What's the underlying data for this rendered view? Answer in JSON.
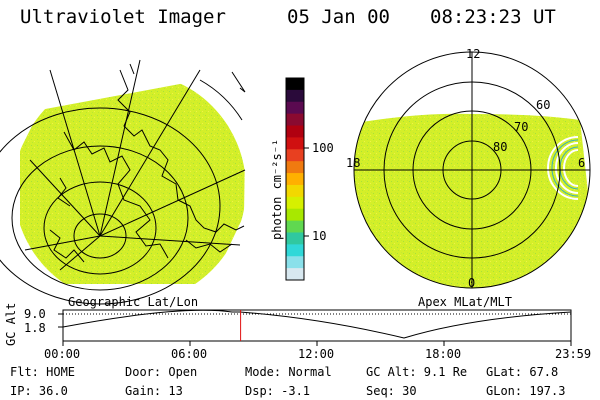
{
  "header": {
    "title": "Ultraviolet Imager",
    "date": "05 Jan 00",
    "time": "08:23:23 UT"
  },
  "colorbar": {
    "unit_label": "photon cm⁻²s⁻¹",
    "ticks": [
      "100",
      "10"
    ],
    "colors": [
      "#000000",
      "#2a0a3a",
      "#5a0a50",
      "#8a0a30",
      "#b00010",
      "#d01010",
      "#e84020",
      "#f07a10",
      "#ffb000",
      "#f2d800",
      "#d6f000",
      "#a8e800",
      "#60d850",
      "#30c8a0",
      "#30d8d8",
      "#8ae0ea",
      "#d8e8f0"
    ]
  },
  "left_map": {
    "caption": "Geographic Lat/Lon",
    "fill_color": "#d4ef29"
  },
  "right_map": {
    "caption": "Apex MLat/MLT",
    "mlt_labels": {
      "top": "12",
      "left": "18",
      "right": "6",
      "bottom": "0"
    },
    "lat_labels": [
      "60",
      "70",
      "80"
    ],
    "fill_color": "#d4ef29"
  },
  "timeline": {
    "axis_label": "GC Alt",
    "y_ticks": [
      "9.0",
      "1.8"
    ],
    "x_ticks": [
      "00:00",
      "06:00",
      "12:00",
      "18:00",
      "23:59"
    ],
    "marker_time_fraction": 0.3496,
    "marker_color": "#e01010"
  },
  "info": {
    "flt": "Flt: HOME",
    "door": "Door: Open",
    "mode": "Mode: Normal",
    "gc_alt": "GC Alt: 9.1 Re",
    "glat": "GLat:  67.8",
    "ip": "IP: 36.0",
    "gain": "Gain: 13",
    "dsp": "Dsp:   -3.1",
    "seq": "Seq: 30",
    "glon": "GLon: 197.3"
  }
}
